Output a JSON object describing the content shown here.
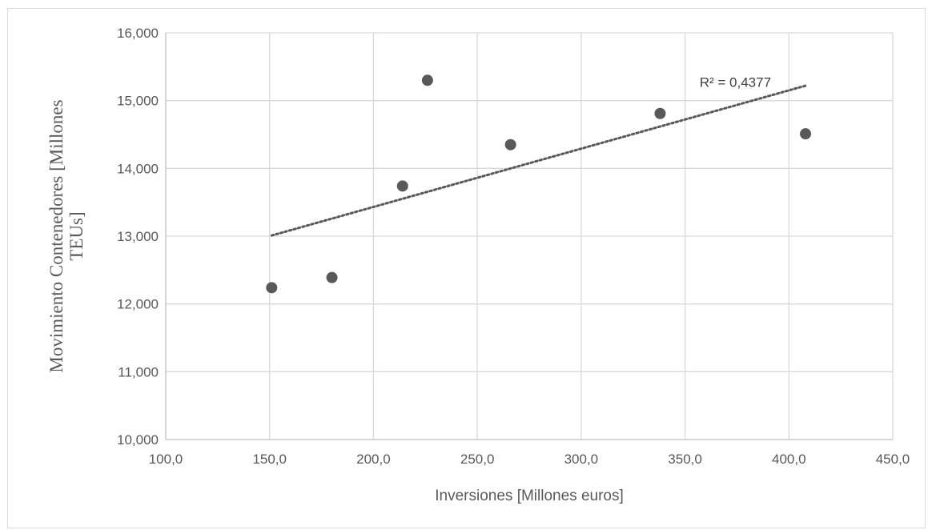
{
  "chart_data": {
    "type": "scatter",
    "xlabel": "Inversiones [Millones euros]",
    "ylabel_lines": [
      "Movimiento Contenedores   [Millones",
      "TEUs]"
    ],
    "xlim": [
      100,
      450
    ],
    "ylim": [
      10000,
      16000
    ],
    "x_ticks": [
      100,
      150,
      200,
      250,
      300,
      350,
      400,
      450
    ],
    "x_tick_labels": [
      "100,0",
      "150,0",
      "200,0",
      "250,0",
      "300,0",
      "350,0",
      "400,0",
      "450,0"
    ],
    "y_ticks": [
      10000,
      11000,
      12000,
      13000,
      14000,
      15000,
      16000
    ],
    "y_tick_labels": [
      "10,000",
      "11,000",
      "12,000",
      "13,000",
      "14,000",
      "15,000",
      "16,000"
    ],
    "grid": true,
    "series": [
      {
        "points": [
          {
            "x": 151,
            "y": 12240
          },
          {
            "x": 180,
            "y": 12390
          },
          {
            "x": 214,
            "y": 13740
          },
          {
            "x": 226,
            "y": 15300
          },
          {
            "x": 266,
            "y": 14350
          },
          {
            "x": 338,
            "y": 14810
          },
          {
            "x": 408,
            "y": 14510
          }
        ],
        "color": "#595959"
      }
    ],
    "trendline": {
      "type": "linear",
      "x_range": [
        151,
        408
      ],
      "y_start": 13010,
      "y_end": 15220,
      "style": "dotted",
      "color": "#595959"
    },
    "annotations": [
      {
        "text": "R² = 0,4377",
        "x": 357,
        "y": 15200
      }
    ]
  }
}
